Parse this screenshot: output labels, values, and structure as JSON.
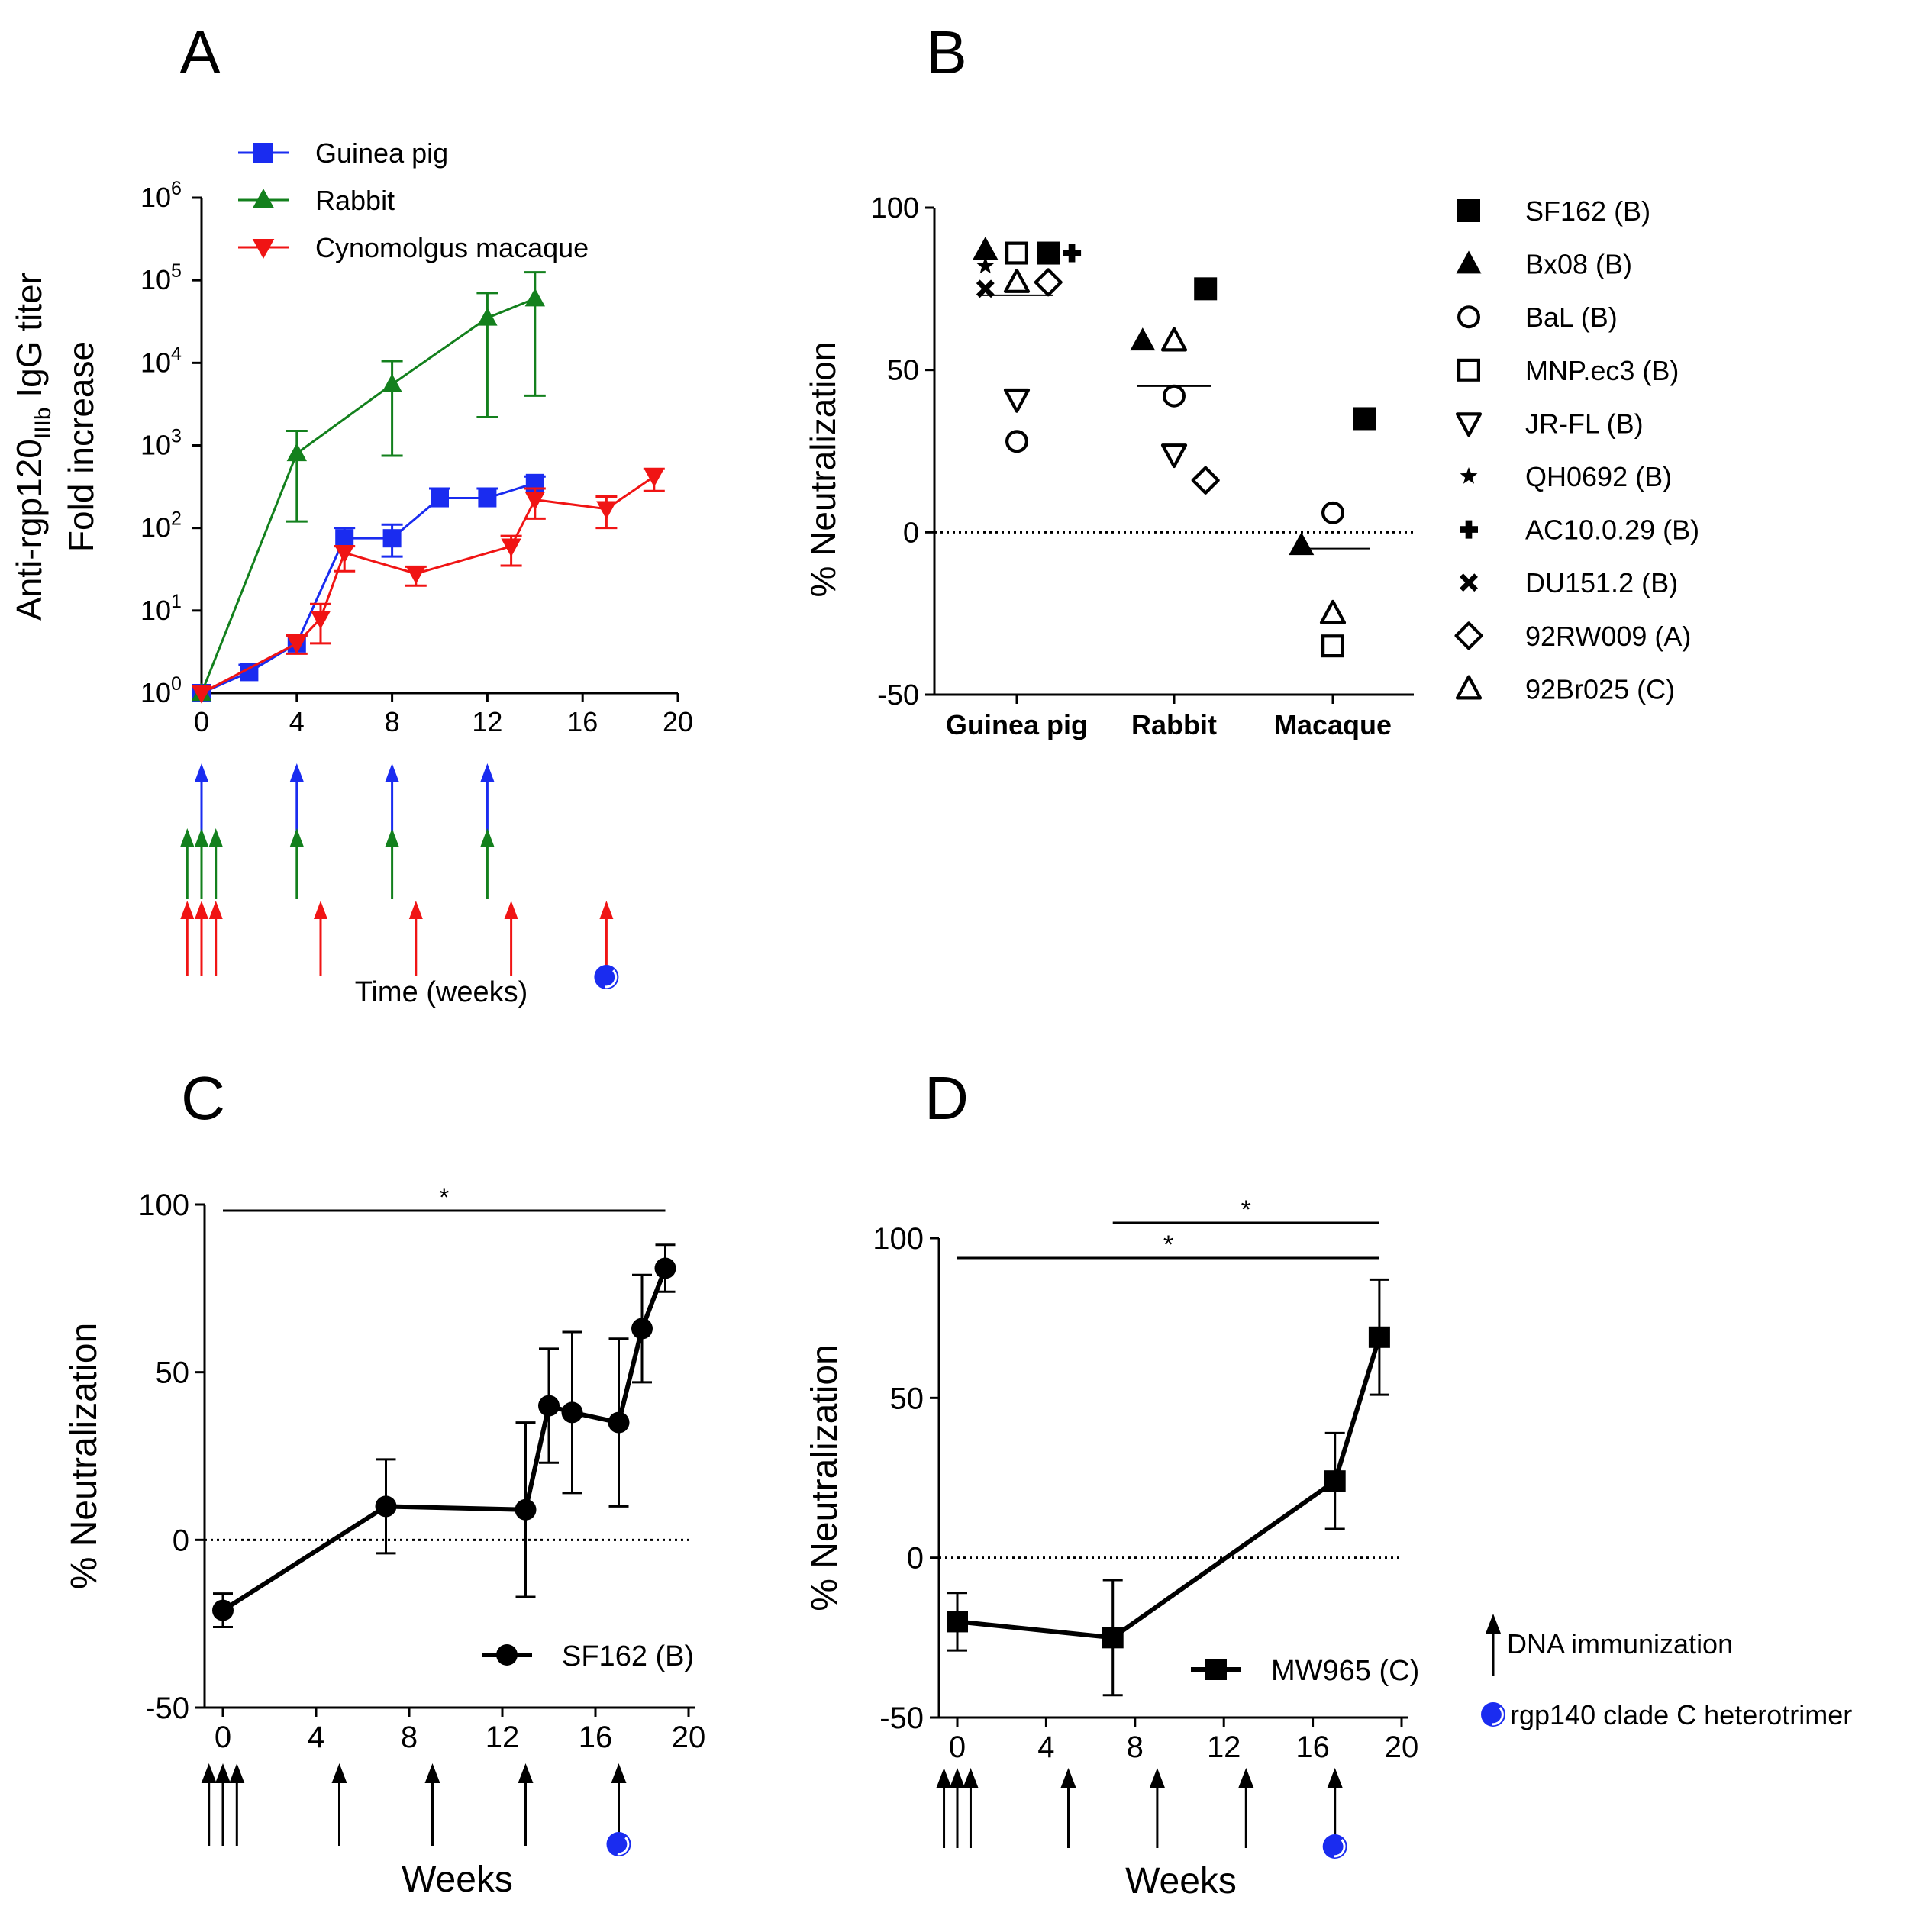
{
  "panel_labels": [
    "A",
    "B",
    "C",
    "D"
  ],
  "colors": {
    "blue": "#1a2cf0",
    "green": "#13801d",
    "red": "#f01414",
    "black": "#000000"
  },
  "chart_data": [
    {
      "id": "A",
      "type": "line",
      "yscale": "log10",
      "ylabel_main": "Anti-rgp120",
      "ylabel_sub": "IIIb",
      "ylabel_rest": " IgG titer",
      "ylabel2": "Fold increase",
      "xlabel": "Time (weeks)",
      "xlim": [
        0,
        20
      ],
      "xticks": [
        0,
        4,
        8,
        12,
        16,
        20
      ],
      "ylim_exp": [
        0,
        6
      ],
      "yticks_base": "10",
      "yticks_exp": [
        "0",
        "1",
        "2",
        "3",
        "4",
        "5",
        "6"
      ],
      "series": [
        {
          "name": "Guinea pig",
          "color": "#1a2cf0",
          "marker": "square",
          "x": [
            0,
            2,
            4,
            6,
            8,
            10,
            12,
            14
          ],
          "y": [
            1,
            1.8,
            4,
            75,
            75,
            230,
            230,
            350
          ],
          "err_hi": [
            1,
            2.2,
            5,
            100,
            110,
            300,
            300,
            420
          ],
          "err_lo": [
            1,
            1.8,
            4,
            75,
            45,
            230,
            230,
            350
          ]
        },
        {
          "name": "Rabbit",
          "color": "#13801d",
          "marker": "triangle-up",
          "x": [
            0,
            4,
            8,
            12,
            14
          ],
          "y": [
            1,
            800,
            5500,
            35000,
            60000
          ],
          "err_hi": [
            1,
            1500,
            10500,
            70000,
            125000
          ],
          "err_lo": [
            1,
            120,
            750,
            2200,
            4000
          ]
        },
        {
          "name": "Cynomolgus macaque",
          "color": "#f01414",
          "marker": "triangle-down",
          "x": [
            0,
            4,
            5,
            6,
            9,
            13,
            14,
            17,
            19
          ],
          "y": [
            1,
            4,
            8,
            50,
            28,
            60,
            220,
            170,
            420
          ],
          "err_hi": [
            1,
            5,
            12,
            60,
            34,
            80,
            300,
            240,
            520
          ],
          "err_lo": [
            1,
            3,
            4,
            30,
            20,
            35,
            130,
            100,
            280
          ]
        }
      ],
      "immunizations": {
        "Guinea pig": [
          0,
          4,
          8,
          12
        ],
        "Rabbit": [
          -0.6,
          0,
          0.6,
          4,
          8,
          12
        ],
        "Cynomolgus macaque": [
          -0.6,
          0,
          0.6,
          5,
          9,
          13,
          17
        ]
      },
      "protein_boost_week": 17
    },
    {
      "id": "B",
      "type": "scatter",
      "ylabel": "% Neutralization",
      "ylim": [
        -50,
        100
      ],
      "yticks": [
        -50,
        0,
        50,
        100
      ],
      "categories": [
        "Guinea pig",
        "Rabbit",
        "Macaque"
      ],
      "median_lines": [
        73,
        45,
        -5
      ],
      "legend": [
        {
          "name": "SF162 (B)",
          "marker": "square"
        },
        {
          "name": "Bx08 (B)",
          "marker": "triangle-up"
        },
        {
          "name": "BaL (B)",
          "marker": "circle-open"
        },
        {
          "name": "MNP.ec3 (B)",
          "marker": "square-open"
        },
        {
          "name": "JR-FL (B)",
          "marker": "triangle-down-open"
        },
        {
          "name": "QH0692 (B)",
          "marker": "star"
        },
        {
          "name": "AC10.0.29 (B)",
          "marker": "plus"
        },
        {
          "name": "DU151.2 (B)",
          "marker": "cross"
        },
        {
          "name": "92RW009 (A)",
          "marker": "diamond-open"
        },
        {
          "name": "92Br025 (C)",
          "marker": "triangle-up-open"
        }
      ],
      "points": [
        {
          "category": "Guinea pig",
          "virus": "Bx08 (B)",
          "offset": -0.2,
          "y": 87
        },
        {
          "category": "Guinea pig",
          "virus": "QH0692 (B)",
          "offset": -0.2,
          "y": 82
        },
        {
          "category": "Guinea pig",
          "virus": "DU151.2 (B)",
          "offset": -0.2,
          "y": 75
        },
        {
          "category": "Guinea pig",
          "virus": "MNP.ec3 (B)",
          "offset": 0.0,
          "y": 86
        },
        {
          "category": "Guinea pig",
          "virus": "92Br025 (C)",
          "offset": 0.0,
          "y": 77
        },
        {
          "category": "Guinea pig",
          "virus": "SF162 (B)",
          "offset": 0.2,
          "y": 86
        },
        {
          "category": "Guinea pig",
          "virus": "AC10.0.29 (B)",
          "offset": 0.35,
          "y": 86
        },
        {
          "category": "Guinea pig",
          "virus": "92RW009 (A)",
          "offset": 0.2,
          "y": 77
        },
        {
          "category": "Guinea pig",
          "virus": "JR-FL (B)",
          "offset": 0.0,
          "y": 41
        },
        {
          "category": "Guinea pig",
          "virus": "BaL (B)",
          "offset": 0.0,
          "y": 28
        },
        {
          "category": "Rabbit",
          "virus": "Bx08 (B)",
          "offset": -0.2,
          "y": 59
        },
        {
          "category": "Rabbit",
          "virus": "92Br025 (C)",
          "offset": 0.0,
          "y": 59
        },
        {
          "category": "Rabbit",
          "virus": "SF162 (B)",
          "offset": 0.2,
          "y": 75
        },
        {
          "category": "Rabbit",
          "virus": "BaL (B)",
          "offset": 0.0,
          "y": 42
        },
        {
          "category": "Rabbit",
          "virus": "JR-FL (B)",
          "offset": 0.0,
          "y": 24
        },
        {
          "category": "Rabbit",
          "virus": "92RW009 (A)",
          "offset": 0.2,
          "y": 16
        },
        {
          "category": "Macaque",
          "virus": "SF162 (B)",
          "offset": 0.2,
          "y": 35
        },
        {
          "category": "Macaque",
          "virus": "BaL (B)",
          "offset": 0.0,
          "y": 6
        },
        {
          "category": "Macaque",
          "virus": "Bx08 (B)",
          "offset": -0.2,
          "y": -4
        },
        {
          "category": "Macaque",
          "virus": "92Br025 (C)",
          "offset": 0.0,
          "y": -25
        },
        {
          "category": "Macaque",
          "virus": "MNP.ec3 (B)",
          "offset": 0.0,
          "y": -35
        }
      ]
    },
    {
      "id": "C",
      "type": "line",
      "ylabel": "% Neutralization",
      "xlabel": "Weeks",
      "xlim": [
        0,
        20
      ],
      "xticks": [
        0,
        4,
        8,
        12,
        16,
        20
      ],
      "ylim": [
        -50,
        100
      ],
      "yticks": [
        -50,
        0,
        50,
        100
      ],
      "series": [
        {
          "name": "SF162 (B)",
          "marker": "circle",
          "x": [
            0,
            7,
            13,
            14,
            15,
            17,
            18,
            19
          ],
          "y": [
            -21,
            10,
            9,
            40,
            38,
            35,
            63,
            81
          ],
          "err": [
            5,
            14,
            26,
            17,
            24,
            25,
            16,
            7
          ]
        }
      ],
      "significance": [
        {
          "x1": 0,
          "x2": 19,
          "label": "*"
        }
      ],
      "immunizations": [
        -0.6,
        0,
        0.6,
        5,
        9,
        13,
        17
      ],
      "protein_boost_week": 17
    },
    {
      "id": "D",
      "type": "line",
      "ylabel": "% Neutralization",
      "xlabel": "Weeks",
      "xlim": [
        0,
        20
      ],
      "xticks": [
        0,
        4,
        8,
        12,
        16,
        20
      ],
      "ylim": [
        -50,
        100
      ],
      "yticks": [
        -50,
        0,
        50,
        100
      ],
      "series": [
        {
          "name": "MW965 (C)",
          "marker": "square",
          "x": [
            0,
            7,
            17,
            19
          ],
          "y": [
            -20,
            -25,
            24,
            69
          ],
          "err": [
            9,
            18,
            15,
            18
          ]
        }
      ],
      "significance": [
        {
          "x1": 0,
          "x2": 19,
          "label": "*"
        },
        {
          "x1": 7,
          "x2": 19,
          "label": "*"
        }
      ],
      "immunizations": [
        -0.6,
        0,
        0.6,
        5,
        9,
        13,
        17
      ],
      "protein_boost_week": 17
    }
  ],
  "global_legend": {
    "arrow_label": "DNA immunization",
    "circle_label": "rgp140 clade C heterotrimer"
  }
}
